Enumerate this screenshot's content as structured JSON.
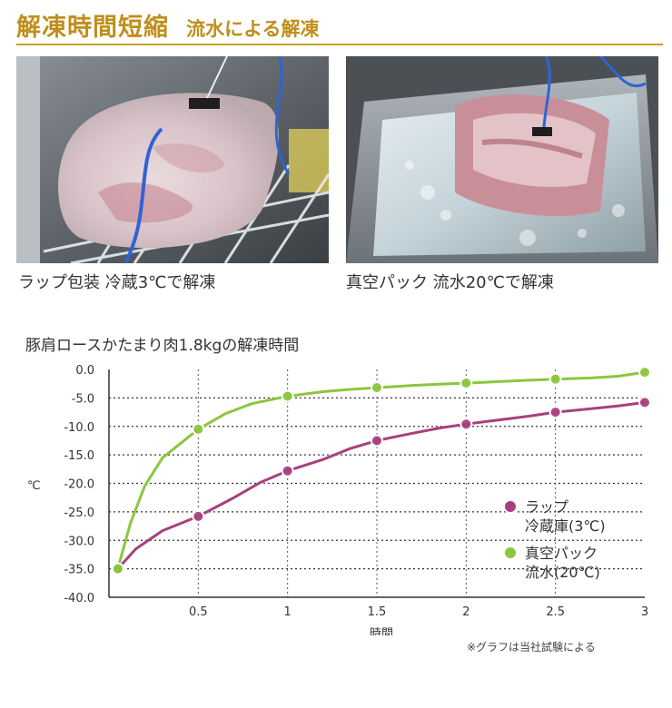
{
  "header": {
    "title": "解凍時間短縮",
    "subtitle": "流水による解凍"
  },
  "photos": {
    "left_caption": "ラップ包装 冷蔵3℃で解凍",
    "right_caption": "真空パック 流水20℃で解凍"
  },
  "colors": {
    "accent": "#c08e1a",
    "series_wrap": "#a8407e",
    "series_vacuum": "#8cc63f"
  },
  "chart_data": {
    "type": "line",
    "title": "豚肩ロースかたまり肉1.8kgの解凍時間",
    "xlabel": "時間",
    "ylabel": "℃",
    "xlim": [
      0,
      3
    ],
    "ylim": [
      -40,
      0
    ],
    "x_ticks": [
      "0.5",
      "1",
      "1.5",
      "2",
      "2.5",
      "3"
    ],
    "y_ticks": [
      "0.0",
      "-5.0",
      "-10.0",
      "-15.0",
      "-20.0",
      "-25.0",
      "-30.0",
      "-35.0",
      "-40.0"
    ],
    "grid": "horizontal dotted",
    "legend_position": "right-middle",
    "series": [
      {
        "name": "ラップ 冷蔵庫(3℃)",
        "color": "#a8407e",
        "points": [
          [
            0.05,
            -35.0
          ],
          [
            0.5,
            -25.8
          ],
          [
            1.0,
            -17.8
          ],
          [
            1.5,
            -12.5
          ],
          [
            2.0,
            -9.6
          ],
          [
            2.5,
            -7.5
          ],
          [
            3.0,
            -5.8
          ]
        ],
        "curve": [
          [
            0.05,
            -35.0
          ],
          [
            0.15,
            -31.5
          ],
          [
            0.3,
            -28.3
          ],
          [
            0.5,
            -25.8
          ],
          [
            0.7,
            -22.5
          ],
          [
            0.85,
            -19.8
          ],
          [
            1.0,
            -17.8
          ],
          [
            1.2,
            -15.8
          ],
          [
            1.35,
            -13.9
          ],
          [
            1.5,
            -12.5
          ],
          [
            1.7,
            -11.2
          ],
          [
            1.85,
            -10.3
          ],
          [
            2.0,
            -9.6
          ],
          [
            2.2,
            -8.8
          ],
          [
            2.35,
            -8.2
          ],
          [
            2.5,
            -7.5
          ],
          [
            2.7,
            -6.9
          ],
          [
            2.85,
            -6.4
          ],
          [
            3.0,
            -5.8
          ]
        ]
      },
      {
        "name": "真空パック 流水(20℃)",
        "color": "#8cc63f",
        "points": [
          [
            0.05,
            -35.0
          ],
          [
            0.5,
            -10.5
          ],
          [
            1.0,
            -4.7
          ],
          [
            1.5,
            -3.2
          ],
          [
            2.0,
            -2.4
          ],
          [
            2.5,
            -1.7
          ],
          [
            3.0,
            -0.5
          ]
        ],
        "curve": [
          [
            0.05,
            -35.0
          ],
          [
            0.12,
            -27.0
          ],
          [
            0.2,
            -20.5
          ],
          [
            0.3,
            -15.5
          ],
          [
            0.4,
            -13.0
          ],
          [
            0.5,
            -10.5
          ],
          [
            0.65,
            -7.8
          ],
          [
            0.8,
            -6.0
          ],
          [
            1.0,
            -4.7
          ],
          [
            1.2,
            -3.9
          ],
          [
            1.35,
            -3.5
          ],
          [
            1.5,
            -3.2
          ],
          [
            1.7,
            -2.8
          ],
          [
            1.85,
            -2.6
          ],
          [
            2.0,
            -2.4
          ],
          [
            2.2,
            -2.1
          ],
          [
            2.35,
            -1.9
          ],
          [
            2.5,
            -1.7
          ],
          [
            2.7,
            -1.5
          ],
          [
            2.85,
            -1.2
          ],
          [
            3.0,
            -0.5
          ]
        ]
      }
    ],
    "legend": [
      {
        "line1": "ラップ",
        "line2": "冷蔵庫(3℃)"
      },
      {
        "line1": "真空パック",
        "line2": "流水(20℃)"
      }
    ],
    "footnote": "※グラフは当社試験による"
  }
}
